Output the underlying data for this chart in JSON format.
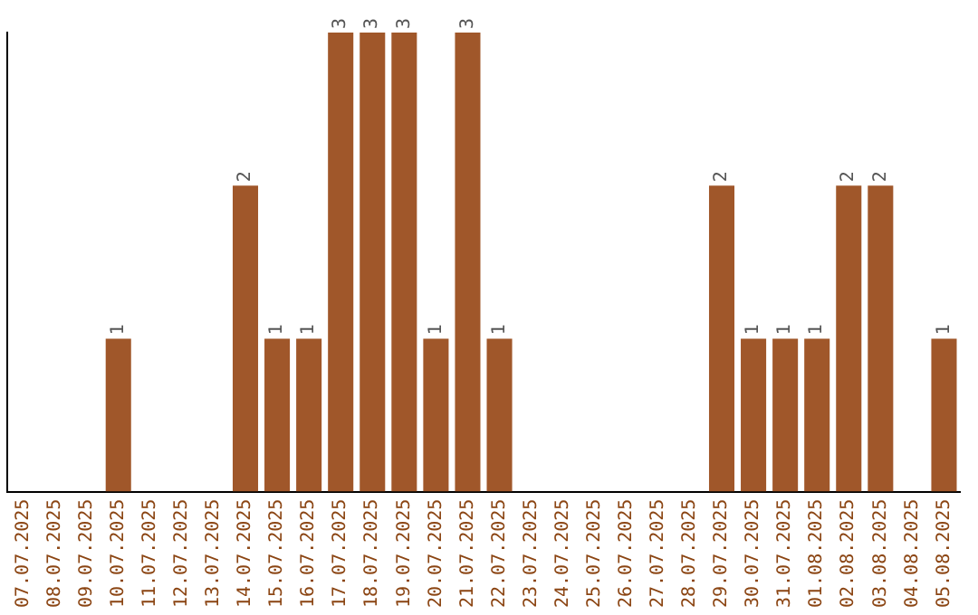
{
  "chart_data": {
    "type": "bar",
    "categories": [
      "07.07.2025",
      "08.07.2025",
      "09.07.2025",
      "10.07.2025",
      "11.07.2025",
      "12.07.2025",
      "13.07.2025",
      "14.07.2025",
      "15.07.2025",
      "16.07.2025",
      "17.07.2025",
      "18.07.2025",
      "19.07.2025",
      "20.07.2025",
      "21.07.2025",
      "22.07.2025",
      "23.07.2025",
      "24.07.2025",
      "25.07.2025",
      "26.07.2025",
      "27.07.2025",
      "28.07.2025",
      "29.07.2025",
      "30.07.2025",
      "31.07.2025",
      "01.08.2025",
      "02.08.2025",
      "03.08.2025",
      "04.08.2025",
      "05.08.2025"
    ],
    "values": [
      0,
      0,
      0,
      1,
      0,
      0,
      0,
      2,
      1,
      1,
      3,
      3,
      3,
      1,
      3,
      1,
      0,
      0,
      0,
      0,
      0,
      0,
      2,
      1,
      1,
      1,
      2,
      2,
      0,
      1
    ],
    "value_labels": [
      null,
      null,
      null,
      "1",
      null,
      null,
      null,
      "2",
      "1",
      "1",
      "3",
      "3",
      "3",
      "1",
      "3",
      "1",
      null,
      null,
      null,
      null,
      null,
      null,
      "2",
      "1",
      "1",
      "1",
      "2",
      "2",
      null,
      "1"
    ],
    "color": "#a0572a",
    "ylim": [
      0,
      3
    ],
    "tick_labels": "x",
    "grid": false,
    "legend": false
  }
}
